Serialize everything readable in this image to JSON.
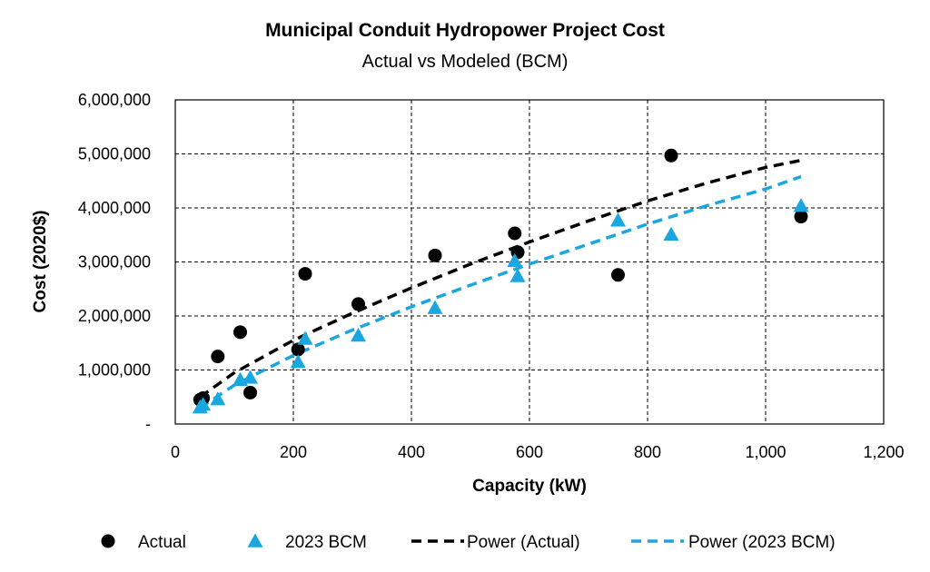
{
  "chart_data": {
    "type": "scatter",
    "title": "Municipal Conduit Hydropower Project Cost",
    "subtitle": "Actual vs Modeled (BCM)",
    "xlabel": "Capacity (kW)",
    "ylabel": "Cost (2020$)",
    "xlim": [
      0,
      1200
    ],
    "ylim": [
      0,
      6000000
    ],
    "x_ticks": [
      0,
      200,
      400,
      600,
      800,
      1000,
      1200
    ],
    "x_tick_labels": [
      "0",
      "200",
      "400",
      "600",
      "800",
      "1,000",
      "1,200"
    ],
    "y_ticks": [
      0,
      1000000,
      2000000,
      3000000,
      4000000,
      5000000,
      6000000
    ],
    "y_tick_labels": [
      "-",
      "1,000,000",
      "2,000,000",
      "3,000,000",
      "4,000,000",
      "5,000,000",
      "6,000,000"
    ],
    "grid": true,
    "legend_position": "bottom",
    "series": [
      {
        "name": "Actual",
        "marker": "circle",
        "color": "#000000",
        "points": [
          [
            42,
            450000
          ],
          [
            47,
            480000
          ],
          [
            72,
            1250000
          ],
          [
            110,
            1700000
          ],
          [
            127,
            580000
          ],
          [
            208,
            1380000
          ],
          [
            220,
            2780000
          ],
          [
            310,
            2220000
          ],
          [
            440,
            3120000
          ],
          [
            575,
            3530000
          ],
          [
            580,
            3180000
          ],
          [
            750,
            2760000
          ],
          [
            840,
            4970000
          ],
          [
            1060,
            3840000
          ]
        ]
      },
      {
        "name": "2023 BCM",
        "marker": "triangle",
        "color": "#1aa7e0",
        "points": [
          [
            42,
            310000
          ],
          [
            47,
            360000
          ],
          [
            72,
            460000
          ],
          [
            110,
            820000
          ],
          [
            127,
            860000
          ],
          [
            208,
            1150000
          ],
          [
            220,
            1580000
          ],
          [
            310,
            1640000
          ],
          [
            440,
            2150000
          ],
          [
            575,
            3020000
          ],
          [
            580,
            2740000
          ],
          [
            750,
            3770000
          ],
          [
            840,
            3510000
          ],
          [
            1060,
            4040000
          ]
        ]
      },
      {
        "name": "Power (Actual)",
        "type": "trendline",
        "line_style": "dashed",
        "color": "#000000",
        "points": [
          [
            42,
            500000
          ],
          [
            100,
            950000
          ],
          [
            200,
            1550000
          ],
          [
            300,
            2050000
          ],
          [
            400,
            2520000
          ],
          [
            500,
            2960000
          ],
          [
            600,
            3370000
          ],
          [
            700,
            3760000
          ],
          [
            800,
            4130000
          ],
          [
            900,
            4460000
          ],
          [
            1000,
            4750000
          ],
          [
            1060,
            4880000
          ]
        ]
      },
      {
        "name": "Power (2023 BCM)",
        "type": "trendline",
        "line_style": "dashed",
        "color": "#1aa7e0",
        "points": [
          [
            42,
            300000
          ],
          [
            100,
            720000
          ],
          [
            200,
            1270000
          ],
          [
            300,
            1740000
          ],
          [
            400,
            2170000
          ],
          [
            500,
            2570000
          ],
          [
            600,
            2960000
          ],
          [
            700,
            3330000
          ],
          [
            800,
            3700000
          ],
          [
            900,
            4040000
          ],
          [
            1000,
            4350000
          ],
          [
            1060,
            4580000
          ]
        ]
      }
    ]
  }
}
